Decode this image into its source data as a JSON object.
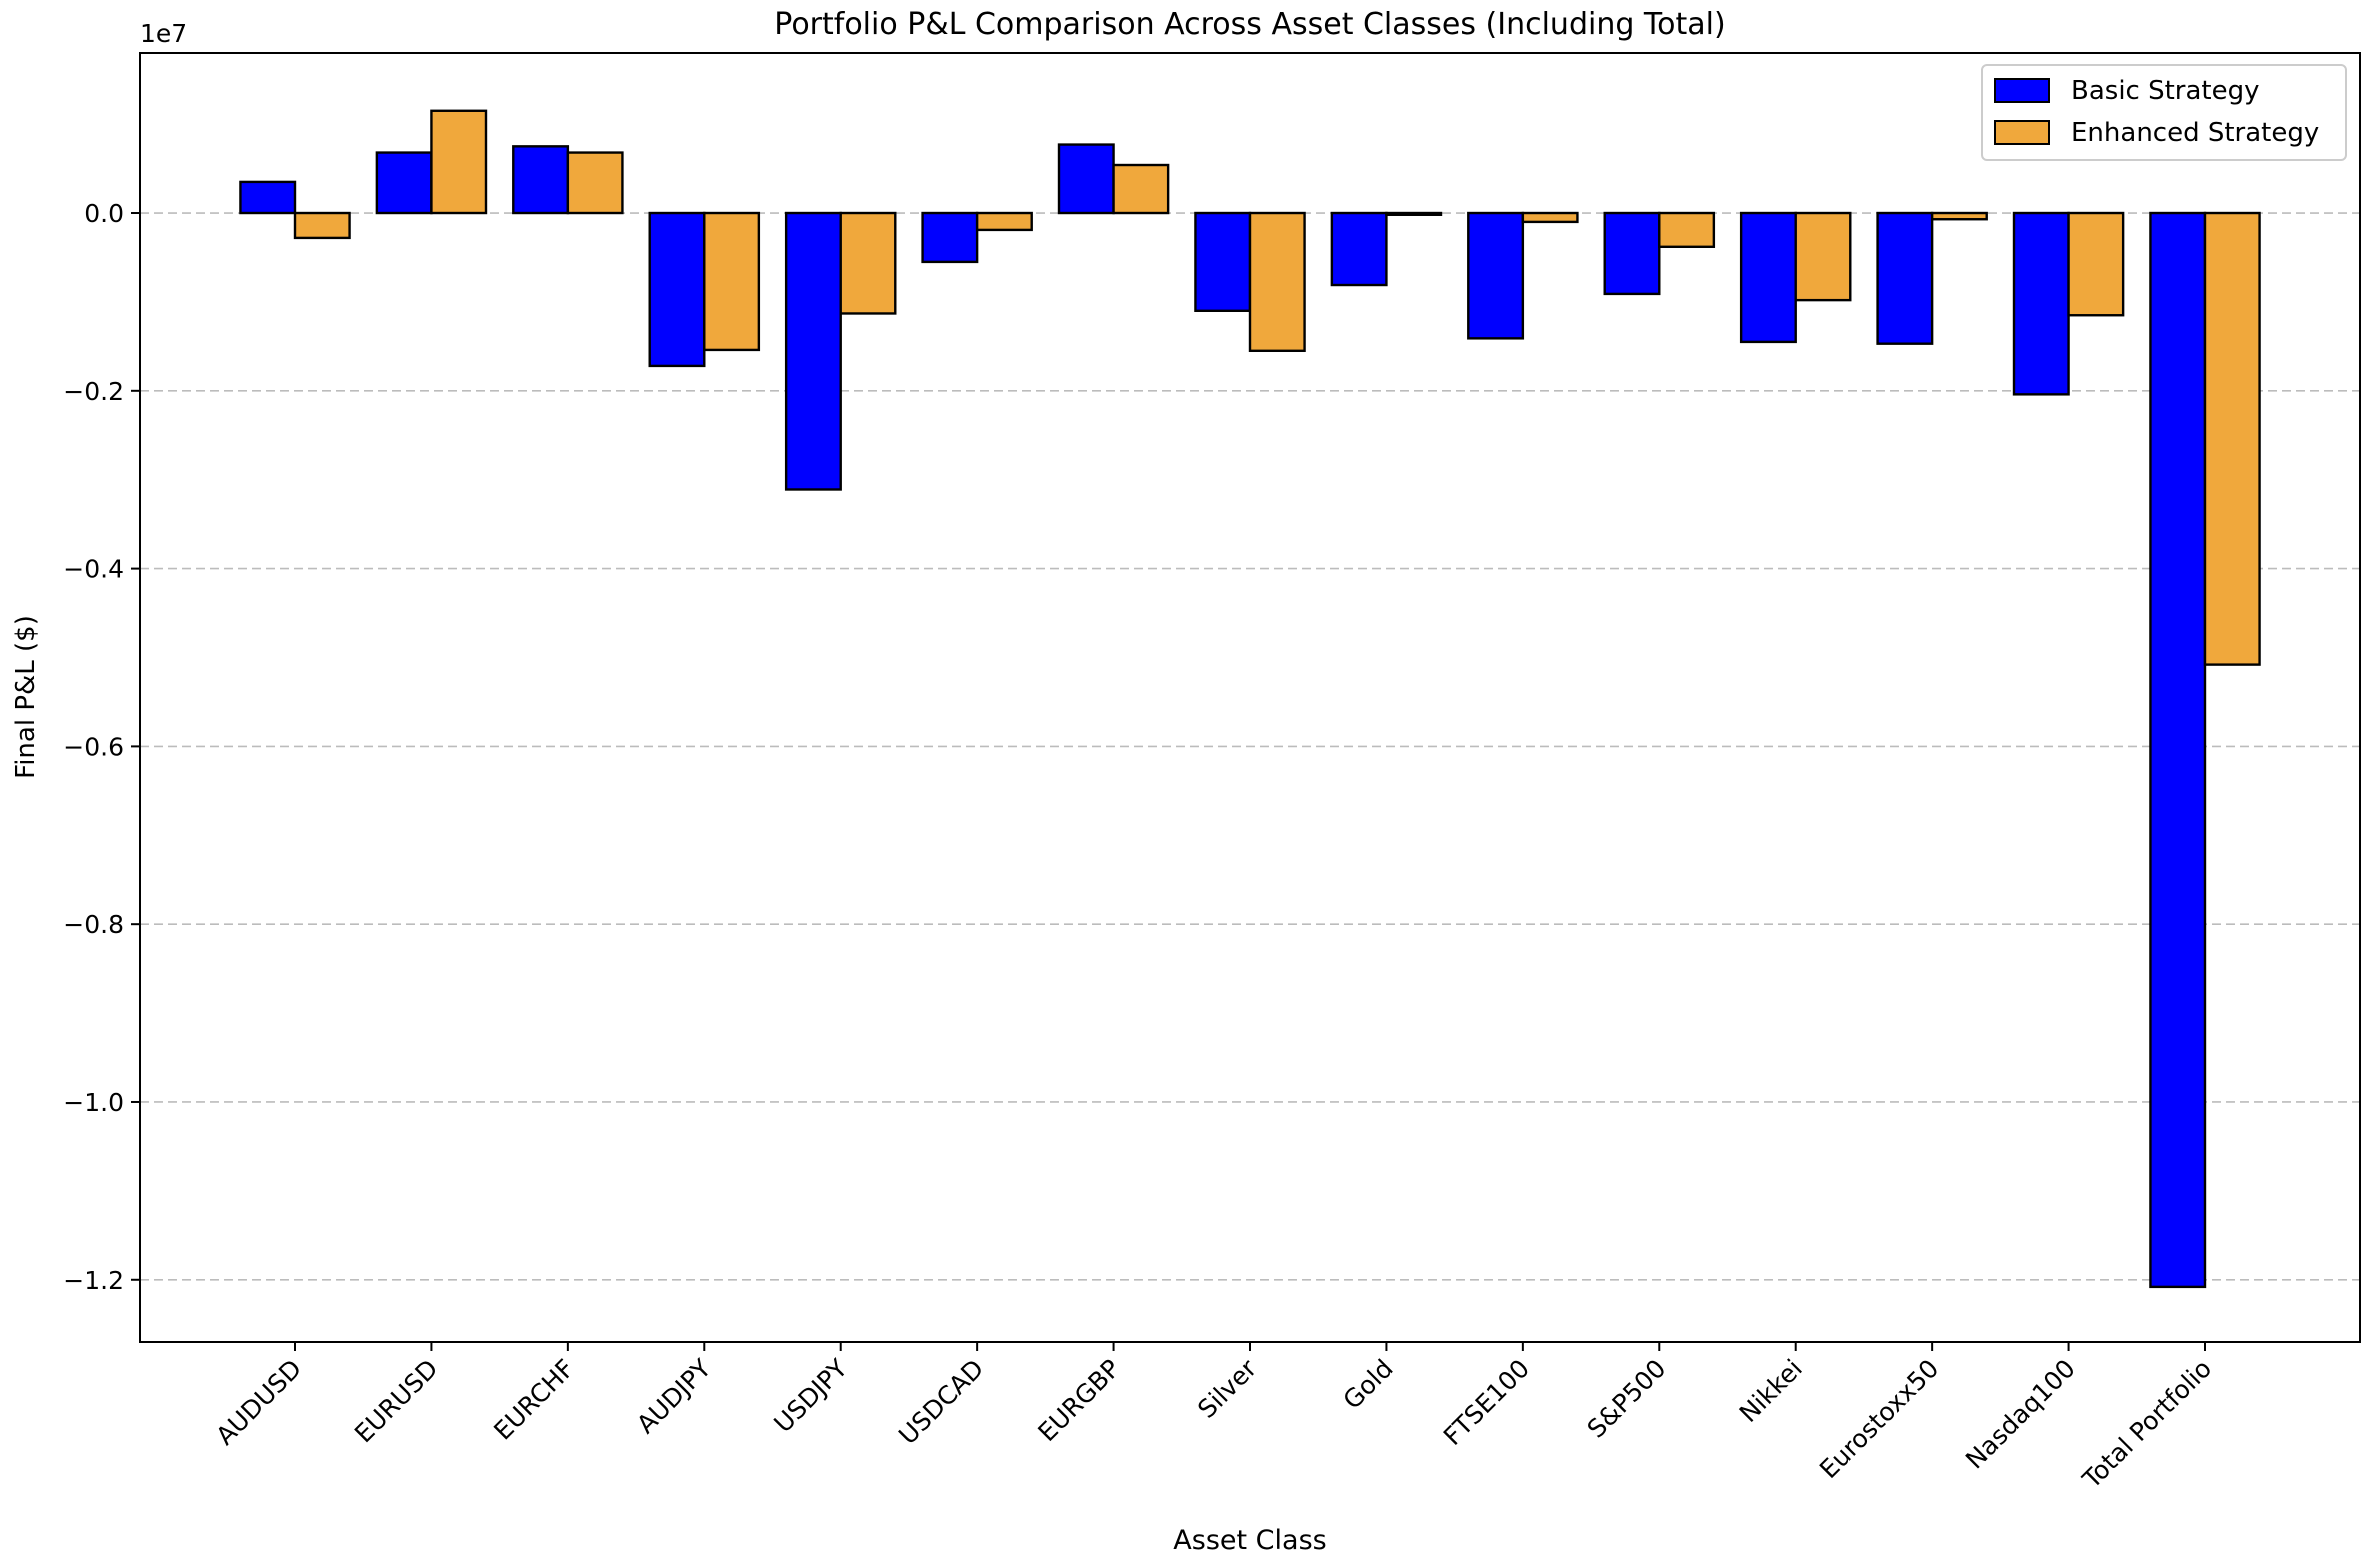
{
  "chart_data": {
    "type": "bar",
    "title": "Portfolio P&L Comparison Across Asset Classes (Including Total)",
    "xlabel": "Asset Class",
    "ylabel": "Final P&L ($)",
    "y_offset_text": "1e7",
    "scale": 10000000,
    "ylim": [
      -12700000,
      1800000
    ],
    "yticks": [
      0,
      -2000000,
      -4000000,
      -6000000,
      -8000000,
      -10000000,
      -12000000
    ],
    "ytick_labels": [
      "0.0",
      "−0.2",
      "−0.4",
      "−0.6",
      "−0.8",
      "−1.0",
      "−1.2"
    ],
    "grid": "y-dashed",
    "legend_position": "top-right",
    "categories": [
      "AUDUSD",
      "EURUSD",
      "EURCHF",
      "AUDJPY",
      "USDJPY",
      "USDCAD",
      "EURGBP",
      "Silver",
      "Gold",
      "FTSE100",
      "S&P500",
      "Nikkei",
      "Eurostoxx50",
      "Nasdaq100",
      "Total Portfolio"
    ],
    "series": [
      {
        "name": "Basic Strategy",
        "color": "#0000ff",
        "values": [
          350000,
          680000,
          750000,
          -1720000,
          -3110000,
          -550000,
          770000,
          -1100000,
          -810000,
          -1410000,
          -910000,
          -1450000,
          -1470000,
          -2040000,
          -12080000
        ]
      },
      {
        "name": "Enhanced Strategy",
        "color": "#f0a83c",
        "values": [
          -280000,
          1150000,
          680000,
          -1540000,
          -1130000,
          -190000,
          540000,
          -1550000,
          -20000,
          -100000,
          -380000,
          -980000,
          -70000,
          -1150000,
          -5080000
        ]
      }
    ]
  }
}
